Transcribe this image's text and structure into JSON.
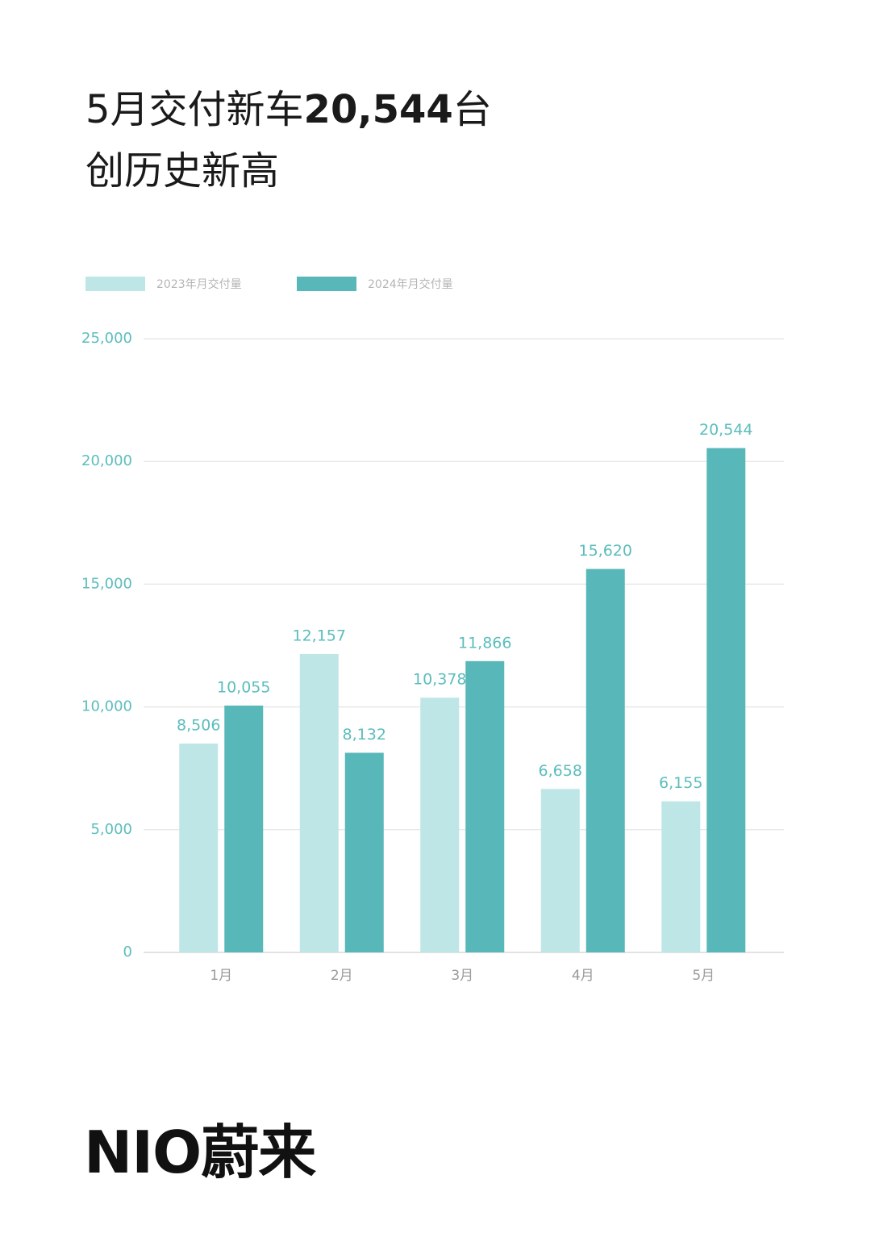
{
  "chart_data": {
    "type": "bar",
    "title_prefix": "5月交付新车",
    "title_highlight": "20,544",
    "title_suffix": "台",
    "subtitle": "创历史新高",
    "categories": [
      "1月",
      "2月",
      "3月",
      "4月",
      "5月"
    ],
    "series": [
      {
        "name": "2023年月交付量",
        "color": "#bfe6e6",
        "values": [
          8506,
          12157,
          10378,
          6658,
          6155
        ],
        "value_labels": [
          "8,506",
          "12,157",
          "10,378",
          "6,658",
          "6,155"
        ]
      },
      {
        "name": "2024年月交付量",
        "color": "#58b7b8",
        "values": [
          10055,
          8132,
          11866,
          15620,
          20544
        ],
        "value_labels": [
          "10,055",
          "8,132",
          "11,866",
          "15,620",
          "20,544"
        ]
      }
    ],
    "ylim": [
      0,
      25000
    ],
    "yticks": [
      0,
      {
        "value": 5000,
        "label": "5,000"
      },
      {
        "value": 10000,
        "label": "10,000"
      },
      {
        "value": 15000,
        "label": "15,000"
      },
      {
        "value": 20000,
        "label": "20,000"
      },
      {
        "value": 25000,
        "label": "25,000"
      }
    ],
    "grid": true
  },
  "footer": {
    "logo": "NIO蔚来"
  }
}
